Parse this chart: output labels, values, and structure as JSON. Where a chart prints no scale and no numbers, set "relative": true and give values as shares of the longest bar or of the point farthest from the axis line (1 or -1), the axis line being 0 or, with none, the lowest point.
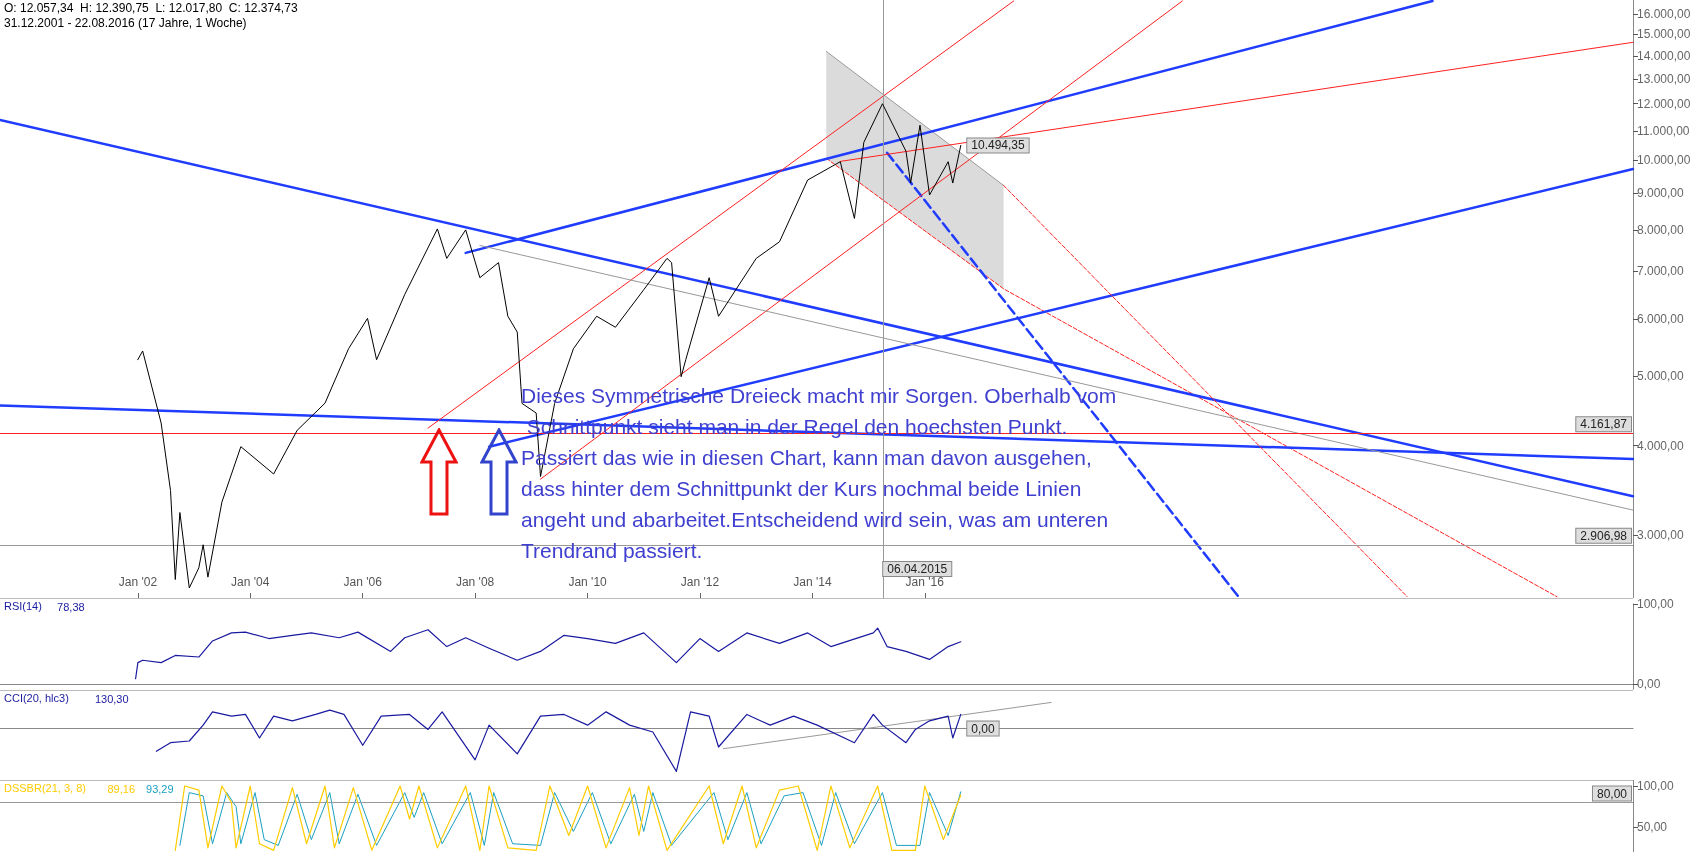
{
  "chart_data": [
    {
      "type": "line",
      "title": "O: 12.057,34  H: 12.390,75  L: 12.017,80  C: 12.374,73",
      "subtitle": "31.12.2001 - 22.08.2016 (17 Jahre, 1 Woche)",
      "log": true,
      "marker": "none",
      "xlim": [
        "1999-07-20",
        "2028-08-07"
      ],
      "ylim": [
        2450,
        16750
      ],
      "xticks": [
        {
          "value": "2002-01-01",
          "label": "Jan '02"
        },
        {
          "value": "2004-01-01",
          "label": "Jan '04"
        },
        {
          "value": "2006-01-01",
          "label": "Jan '06"
        },
        {
          "value": "2008-01-01",
          "label": "Jan '08"
        },
        {
          "value": "2010-01-01",
          "label": "Jan '10"
        },
        {
          "value": "2012-01-01",
          "label": "Jan '12"
        },
        {
          "value": "2014-01-01",
          "label": "Jan '14"
        },
        {
          "value": "2016-01-01",
          "label": "Jan '16"
        }
      ],
      "yticks": [
        {
          "value": 3000,
          "label": "3.000,00"
        },
        {
          "value": 4000,
          "label": "4.000,00"
        },
        {
          "value": 5000,
          "label": "5.000,00"
        },
        {
          "value": 6000,
          "label": "6.000,00"
        },
        {
          "value": 7000,
          "label": "7.000,00"
        },
        {
          "value": 8000,
          "label": "8.000,00"
        },
        {
          "value": 9000,
          "label": "9.000,00"
        },
        {
          "value": 10000,
          "label": "10.000,00"
        },
        {
          "value": 11000,
          "label": "11.000,00"
        },
        {
          "value": 12000,
          "label": "12.000,00"
        },
        {
          "value": 13000,
          "label": "13.000,00"
        },
        {
          "value": 14000,
          "label": "14.000,00"
        },
        {
          "value": 15000,
          "label": "15.000,00"
        },
        {
          "value": 16000,
          "label": "16.000,00"
        }
      ],
      "series": [
        {
          "color": "#000000",
          "x": [
            "2001-12-31",
            "2002-02",
            "2002-06",
            "2002-08",
            "2002-09",
            "2002-10",
            "2002-12",
            "2003-02",
            "2003-03",
            "2003-04",
            "2003-07",
            "2003-11",
            "2004-06",
            "2004-11",
            "2005-05",
            "2005-10",
            "2006-02",
            "2006-04",
            "2006-10",
            "2007-05",
            "2007-07",
            "2007-11",
            "2008-02",
            "2008-06",
            "2008-08",
            "2008-10",
            "2008-11",
            "2009-02",
            "2009-03",
            "2009-06",
            "2009-10",
            "2010-03",
            "2010-07",
            "2011-01",
            "2011-06",
            "2011-07",
            "2011-09",
            "2011-10",
            "2012-03",
            "2012-05",
            "2013-01",
            "2013-06",
            "2013-12",
            "2014-07",
            "2014-10",
            "2014-12",
            "2015-04",
            "2015-09",
            "2015-10",
            "2015-12",
            "2016-02",
            "2016-06",
            "2016-07",
            "2016-08-22"
          ],
          "values": [
            5270,
            5420,
            4300,
            3460,
            2600,
            3225,
            2530,
            2700,
            2907,
            2620,
            3335,
            3985,
            3650,
            4200,
            4584,
            5460,
            6020,
            5270,
            6500,
            8025,
            7300,
            8000,
            6860,
            7200,
            6060,
            5760,
            4580,
            4440,
            3620,
            4580,
            5460,
            6060,
            5850,
            6600,
            7300,
            7200,
            4990,
            5270,
            6860,
            6060,
            7300,
            7700,
            9390,
            9960,
            8300,
            10600,
            12000,
            10300,
            9300,
            11200,
            8950,
            9960,
            9300,
            10494.35
          ]
        },
        {
          "color": "#999999",
          "x": [
            "2014-04",
            "2017-05-27"
          ],
          "values": [
            14200,
            9230
          ],
          "lower": [
            10070,
            6620
          ],
          "upper": [
            14200,
            9230
          ]
        },
        {
          "color": "#ff2020",
          "line_style": "dashed",
          "x": [
            "2014-04",
            "2017-05-27",
            "2027-04"
          ],
          "values": [
            10070,
            6620,
            2460
          ]
        },
        {
          "color": "#1f3cff",
          "x": [
            "1999-07-20",
            "2028-08-07"
          ],
          "values": [
            11390,
            3397
          ]
        },
        {
          "color": "#1f3cff",
          "x": [
            "1999-07-20",
            "2028-08-07"
          ],
          "values": [
            4550,
            3830
          ]
        },
        {
          "color": "#1f3cff",
          "x": [
            "2007-11",
            "2025-01-12"
          ],
          "values": [
            7430,
            16700
          ]
        },
        {
          "color": "#1f3cff",
          "x": [
            "2008-04",
            "2028-08-07"
          ],
          "values": [
            3985,
            9730
          ]
        },
        {
          "color": "#1f3cff",
          "line_style": "dashed",
          "x": [
            "2015-05",
            "2021-08"
          ],
          "values": [
            10250,
            2460
          ]
        },
        {
          "color": "#ff2020",
          "x": [
            "2007-03",
            "2017-08"
          ],
          "values": [
            4230,
            16700
          ]
        },
        {
          "color": "#ff2020",
          "x": [
            "2009-03",
            "2020-08"
          ],
          "values": [
            3590,
            16700
          ]
        },
        {
          "color": "#ff2020",
          "x": [
            "2014-07",
            "2028-08-07"
          ],
          "values": [
            9970,
            14620
          ]
        },
        {
          "color": "#ff2020",
          "line_style": "dashed",
          "x": [
            "2017-05-27",
            "2024-08"
          ],
          "values": [
            9230,
            2460
          ]
        },
        {
          "color": "#999999",
          "x": [
            "2008-02",
            "2028-08-07"
          ],
          "values": [
            7610,
            3250
          ]
        }
      ],
      "ref_lines": [
        {
          "axis": "y",
          "value": 4161.87,
          "label": "4.161,87",
          "color": "#ff2020"
        },
        {
          "axis": "y",
          "value": 2906.98,
          "label": "2.906,98",
          "color": "#999999"
        },
        {
          "axis": "x",
          "value": "2015-04-06",
          "label": "06.04.2015",
          "color": "#999999"
        }
      ],
      "annotations": [
        {
          "text": "10.494,35",
          "x": "2016-08-22",
          "y": 10494.35
        },
        "Dieses Symmetrische Dreieck macht mir Sorgen. Oberhalb vom Schnittpunkt sieht man in der Regel den hoechsten Punkt. Passiert das wie in diesen Chart, kann man davon ausgehen, dass hinter dem Schnittpunkt der Kurs nochmal beide Linien angeht und abarbeitet.Entscheidend wird sein, was am unteren Trendrand passiert."
      ]
    },
    {
      "type": "line",
      "title": "RSI(14)",
      "marker": "none",
      "legend": "top left",
      "tick_labels": "y",
      "xlim": [
        "1999-07-20",
        "2028-08-07"
      ],
      "ylim": [
        -6,
        100
      ],
      "yticks": [
        {
          "value": 0,
          "label": "0,00"
        },
        {
          "value": 100,
          "label": "100,00"
        }
      ],
      "series": [
        {
          "name": "78,38",
          "color": "#1a1aa0",
          "x": [
            "2001-12-17",
            "2002-01",
            "2002-02",
            "2002-06",
            "2002-09",
            "2003-02",
            "2003-05",
            "2003-09",
            "2003-12",
            "2004-05",
            "2004-10",
            "2005-02",
            "2005-08",
            "2005-12",
            "2006-07",
            "2006-10",
            "2007-03",
            "2007-07",
            "2007-11",
            "2008-04",
            "2008-10",
            "2009-03",
            "2009-08",
            "2010-01",
            "2010-07",
            "2011-01",
            "2011-08",
            "2012-01",
            "2012-05",
            "2012-11",
            "2013-06",
            "2013-12",
            "2014-05",
            "2015-02",
            "2015-03",
            "2015-05",
            "2015-09",
            "2016-02",
            "2016-06",
            "2016-08-22"
          ],
          "values": [
            7,
            27,
            30,
            27,
            36,
            34,
            54,
            64,
            65,
            57,
            61,
            64,
            58,
            65,
            41,
            58,
            68,
            47,
            58,
            45,
            30,
            41,
            61,
            57,
            51,
            64,
            27,
            57,
            41,
            64,
            51,
            64,
            47,
            64,
            70,
            47,
            41,
            31,
            47,
            53
          ]
        }
      ]
    },
    {
      "type": "line",
      "title": "CCI(20, hlc3)",
      "marker": "none",
      "legend": "top left",
      "relative": true,
      "tick_labels": false,
      "xlim": [
        "1999-07-20",
        "2028-08-07"
      ],
      "annotations": [
        {
          "text": "0,00",
          "x": "2016-08-22",
          "y": 0
        }
      ],
      "series": [
        {
          "name": "130,30",
          "color": "#1a1aa0",
          "x": [
            "2002-05",
            "2002-08",
            "2002-12",
            "2003-03",
            "2003-05",
            "2003-09",
            "2003-12",
            "2004-03",
            "2004-06",
            "2004-10",
            "2005-03",
            "2005-06",
            "2005-09",
            "2006-01",
            "2006-05",
            "2006-11",
            "2007-03",
            "2007-06",
            "2008-01",
            "2008-04",
            "2008-10",
            "2009-03",
            "2009-08",
            "2010-01",
            "2010-05",
            "2010-10",
            "2011-03",
            "2011-08",
            "2011-11",
            "2012-03",
            "2012-05",
            "2012-11",
            "2013-04",
            "2013-09",
            "2014-02",
            "2014-10",
            "2015-02",
            "2015-04",
            "2015-09",
            "2015-11",
            "2016-02",
            "2016-06",
            "2016-07",
            "2016-08-22"
          ],
          "values": [
            -0.53,
            -0.33,
            -0.29,
            0.08,
            0.39,
            0.29,
            0.33,
            -0.22,
            0.29,
            0.18,
            0.33,
            0.43,
            0.33,
            -0.39,
            0.29,
            0.33,
            -0.02,
            0.39,
            -0.73,
            0.08,
            -0.59,
            0.29,
            0.33,
            0.08,
            0.39,
            0.08,
            -0.08,
            -1,
            0.39,
            0.29,
            -0.43,
            0.33,
            0.08,
            0.29,
            0.08,
            -0.33,
            0.33,
            0.08,
            -0.33,
            -0.02,
            0.18,
            0.29,
            -0.22,
            0.33
          ]
        },
        {
          "color": "#999999",
          "x": [
            "2012-06",
            "2018-04"
          ],
          "values": [
            -0.47,
            0.61
          ]
        }
      ]
    },
    {
      "type": "line",
      "title": "DSSBR(21, 3, 8)",
      "marker": "none",
      "legend": "top left",
      "tick_labels": "y",
      "xlim": [
        "1999-07-20",
        "2028-08-07"
      ],
      "ylim": [
        20,
        107
      ],
      "yticks": [
        {
          "value": 50,
          "label": "50,00"
        },
        {
          "value": 100,
          "label": "100,00"
        }
      ],
      "ref_lines": [
        {
          "axis": "y",
          "value": 80,
          "label": "80,00",
          "color": "#999999"
        }
      ],
      "series": [
        {
          "name": "89,16",
          "color": "#ffcc00",
          "x": [
            "2002-09",
            "2002-11",
            "2003-02",
            "2003-04",
            "2003-07",
            "2003-09",
            "2003-10",
            "2004-01",
            "2004-03",
            "2004-06",
            "2004-10",
            "2005-01",
            "2005-05",
            "2005-07",
            "2005-11",
            "2006-03",
            "2006-09",
            "2006-11",
            "2007-01",
            "2007-05",
            "2007-11",
            "2008-02",
            "2008-04",
            "2008-08",
            "2009-02",
            "2009-05",
            "2009-09",
            "2010-01",
            "2010-05",
            "2010-10",
            "2010-12",
            "2011-02",
            "2011-06",
            "2012-03",
            "2012-06",
            "2012-10",
            "2013-01",
            "2013-06",
            "2013-10",
            "2014-02",
            "2014-05",
            "2014-09",
            "2015-03",
            "2015-06",
            "2015-11",
            "2016-01",
            "2016-05",
            "2016-08-22"
          ],
          "values": [
            22,
            100,
            95,
            25,
            100,
            80,
            25,
            100,
            30,
            22,
            98,
            30,
            100,
            25,
            98,
            22,
            100,
            60,
            100,
            25,
            100,
            22,
            100,
            25,
            22,
            100,
            40,
            100,
            25,
            98,
            40,
            100,
            22,
            100,
            30,
            100,
            25,
            95,
            100,
            22,
            100,
            25,
            100,
            22,
            22,
            100,
            35,
            89
          ]
        },
        {
          "name": "93,29",
          "color": "#1a9fc0",
          "x": [
            "2002-10",
            "2002-12",
            "2003-03",
            "2003-05",
            "2003-08",
            "2003-10",
            "2003-11",
            "2004-02",
            "2004-04",
            "2004-07",
            "2004-11",
            "2005-02",
            "2005-06",
            "2005-08",
            "2005-12",
            "2006-04",
            "2006-10",
            "2006-12",
            "2007-02",
            "2007-06",
            "2007-12",
            "2008-03",
            "2008-05",
            "2008-09",
            "2009-03",
            "2009-06",
            "2009-10",
            "2010-02",
            "2010-06",
            "2010-11",
            "2011-01",
            "2011-03",
            "2011-07",
            "2012-04",
            "2012-07",
            "2012-11",
            "2013-02",
            "2013-07",
            "2013-11",
            "2014-03",
            "2014-06",
            "2014-10",
            "2015-04",
            "2015-07",
            "2015-12",
            "2016-02",
            "2016-06",
            "2016-08-22"
          ],
          "values": [
            28,
            92,
            88,
            30,
            92,
            75,
            30,
            92,
            35,
            28,
            90,
            35,
            92,
            30,
            90,
            28,
            92,
            62,
            92,
            30,
            92,
            28,
            92,
            30,
            28,
            92,
            45,
            92,
            30,
            90,
            45,
            92,
            28,
            92,
            35,
            92,
            30,
            88,
            92,
            28,
            92,
            30,
            92,
            28,
            28,
            92,
            40,
            93
          ]
        }
      ]
    }
  ]
}
